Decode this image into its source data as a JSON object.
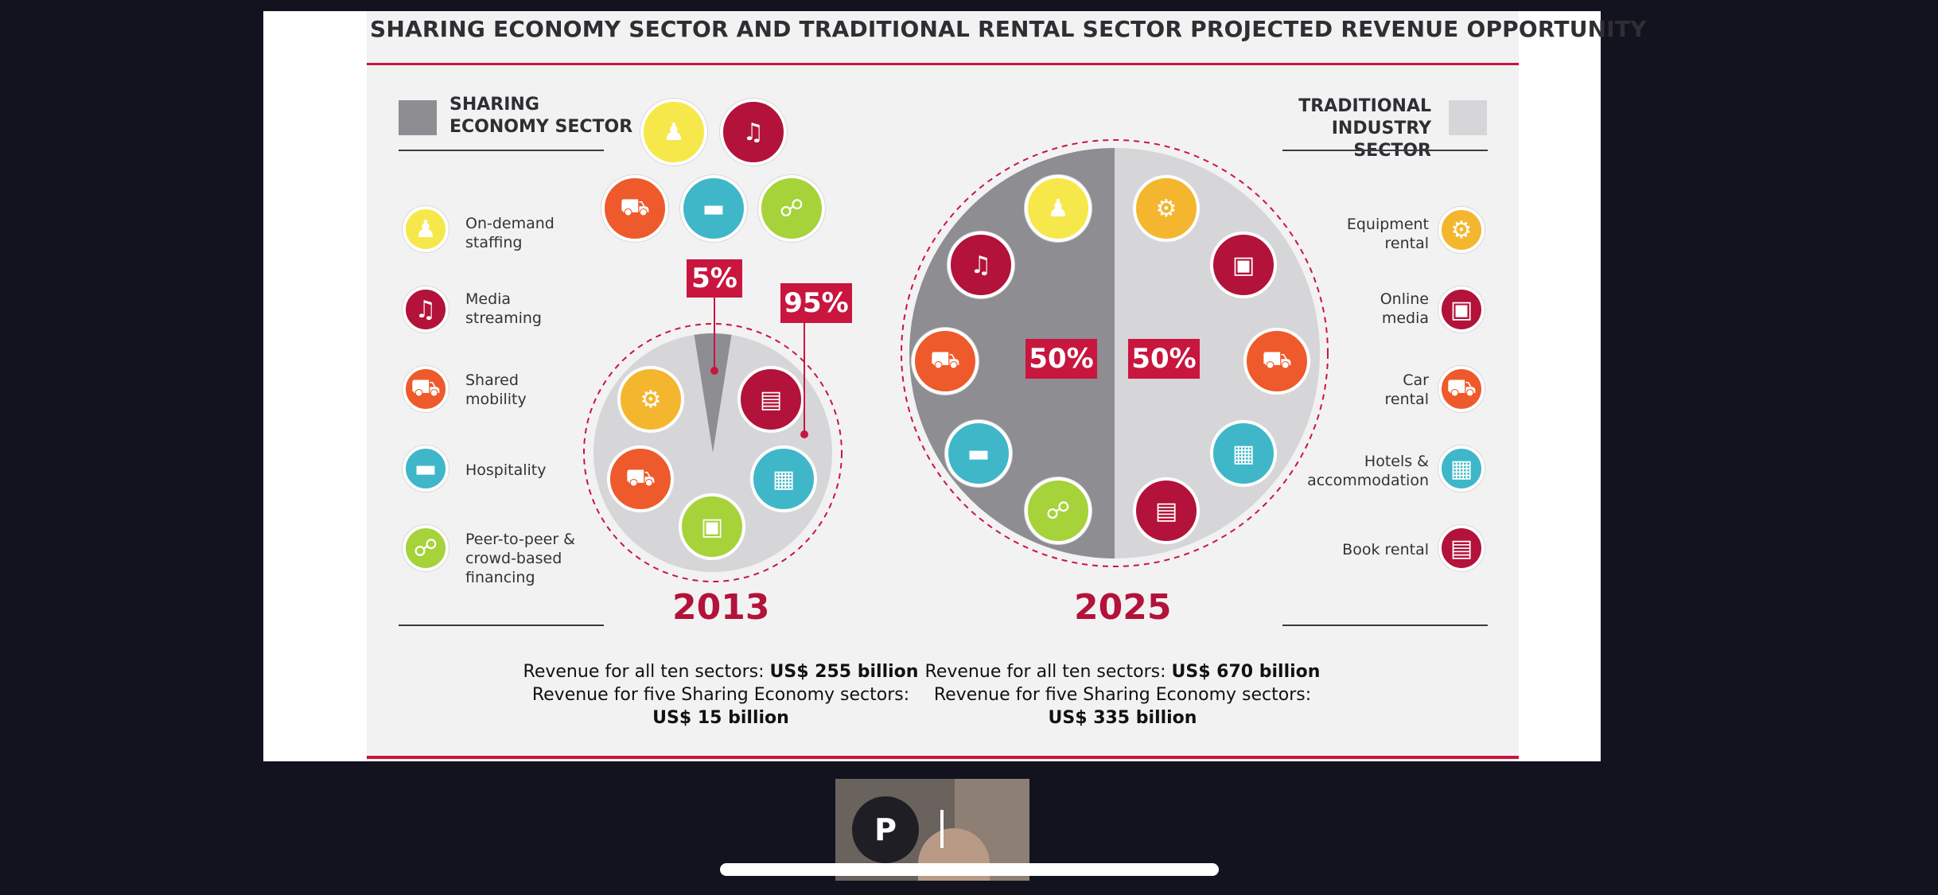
{
  "slide": {
    "title": "SHARING ECONOMY SECTOR AND TRADITIONAL RENTAL SECTOR PROJECTED REVENUE OPPORTUNITY",
    "left_header": [
      "SHARING",
      "ECONOMY SECTOR"
    ],
    "right_header": [
      "TRADITIONAL",
      "INDUSTRY SECTOR"
    ],
    "sharing_items": [
      {
        "label": [
          "On-demand",
          "staffing"
        ],
        "icon": "staffing-icon"
      },
      {
        "label": [
          "Media",
          "streaming"
        ],
        "icon": "music-icon"
      },
      {
        "label": [
          "Shared",
          "mobility"
        ],
        "icon": "car-icon"
      },
      {
        "label": [
          "Hospitality"
        ],
        "icon": "bed-icon"
      },
      {
        "label": [
          "Peer-to-peer &",
          "crowd-based",
          "financing"
        ],
        "icon": "handshake-icon"
      }
    ],
    "traditional_items": [
      {
        "label": [
          "Equipment",
          "rental"
        ],
        "icon": "forklift-icon"
      },
      {
        "label": [
          "Online",
          "media"
        ],
        "icon": "laptop-icon"
      },
      {
        "label": [
          "Car",
          "rental"
        ],
        "icon": "car-front-icon"
      },
      {
        "label": [
          "Hotels &",
          "accommodation"
        ],
        "icon": "building-icon"
      },
      {
        "label": [
          "Book rental"
        ],
        "icon": "book-icon"
      }
    ],
    "chart_2013": {
      "year": "2013",
      "sharing_pct": "5%",
      "traditional_pct": "95%"
    },
    "chart_2025": {
      "year": "2025",
      "sharing_pct": "50%",
      "traditional_pct": "50%"
    },
    "revenue_2013": {
      "line1_prefix": "Revenue for all ten sectors: ",
      "line1_value": "US$ 255 billion",
      "line2": "Revenue for five Sharing Economy sectors:",
      "line3": "US$ 15 billion"
    },
    "revenue_2025": {
      "line1_prefix": "Revenue for all ten sectors: ",
      "line1_value": "US$ 670 billion",
      "line2": "Revenue for five Sharing Economy sectors:",
      "line3": "US$ 335 billion"
    }
  },
  "chart_data": [
    {
      "type": "pie",
      "title": "2013",
      "categories": [
        "Sharing Economy Sector",
        "Traditional Industry Sector"
      ],
      "values": [
        5,
        95
      ]
    },
    {
      "type": "pie",
      "title": "2025",
      "categories": [
        "Sharing Economy Sector",
        "Traditional Industry Sector"
      ],
      "values": [
        50,
        50
      ]
    }
  ],
  "colors": {
    "accent_red": "#c8163f",
    "sharing_gray": "#8e8d92",
    "traditional_gray": "#d6d5d8",
    "yellow": "#f6e84a",
    "crimson": "#b3123a",
    "orange": "#ee5a2b",
    "teal": "#3fb7c9",
    "green": "#a6d23a",
    "amber": "#f4b62e"
  },
  "video_call": {
    "participant_initial": "P"
  }
}
